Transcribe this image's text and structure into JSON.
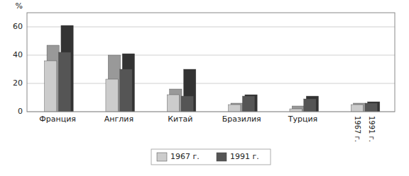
{
  "chart_data": {
    "type": "bar",
    "categories": [
      "Франция",
      "Англия",
      "Китай",
      "Бразилия",
      "Турция",
      null
    ],
    "series": [
      {
        "color": "#999999",
        "values": [
          47,
          40,
          16,
          6,
          4,
          6
        ]
      },
      {
        "color": "#333333",
        "values": [
          61,
          41,
          30,
          12,
          11,
          7
        ]
      },
      {
        "name": "1967 г.",
        "color": "#cccccc",
        "values": [
          36,
          23,
          12,
          5,
          2,
          5
        ]
      },
      {
        "name": "1991 г.",
        "color": "#555555",
        "values": [
          42,
          30,
          11,
          11,
          9,
          6
        ]
      }
    ],
    "y_label": "%",
    "annotations": [
      "1967 г.",
      "1991 г."
    ],
    "ylim": [
      0,
      70
    ],
    "yticks": [
      0,
      20,
      40,
      60
    ],
    "grid": true
  }
}
